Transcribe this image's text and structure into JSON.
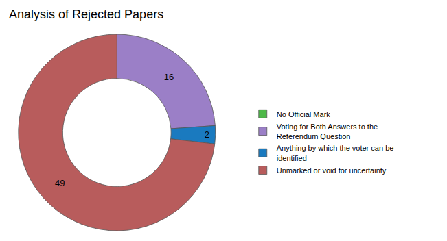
{
  "chart_data": {
    "type": "pie",
    "title": "Analysis of Rejected Papers",
    "categories": [
      "No Official Mark",
      "Voting for Both Answers to the\nReferendum Question",
      "Anything by which the voter can be\nidentified",
      "Unmarked or void for uncertainty"
    ],
    "values": [
      0,
      16,
      2,
      49
    ],
    "colors": [
      "#4db848",
      "#9b7fc7",
      "#1a7abf",
      "#b85c5c"
    ],
    "data_labels": true,
    "legend": "right"
  }
}
